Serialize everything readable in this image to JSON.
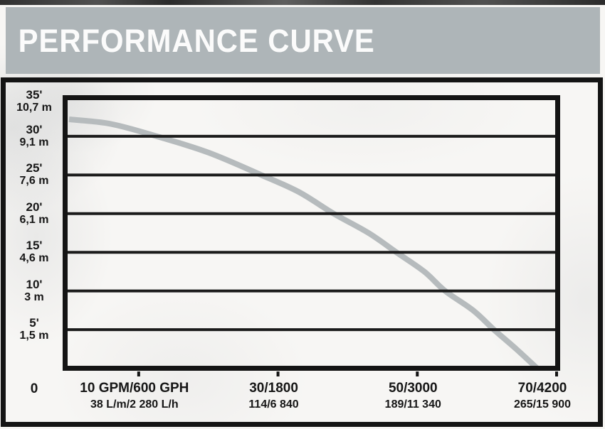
{
  "header": {
    "title": "PERFORMANCE CURVE",
    "background_color": "#aeb5b8",
    "text_color": "#fbfbfb"
  },
  "colors": {
    "curve": "#b6bbbd",
    "grid_line": "#1b1b1b",
    "border_black": "#141414",
    "page_background": "#f7f6f4"
  },
  "chart_data": {
    "type": "line",
    "title": "PERFORMANCE CURVE",
    "legend": "none",
    "grid": "horizontal-only",
    "x_axis": {
      "origin_label": "0",
      "range_gpm": [
        0,
        70
      ],
      "ticks": [
        {
          "gpm": 10,
          "line1": "10 GPM/600 GPH",
          "line2": "38 L/m/2 280 L/h"
        },
        {
          "gpm": 30,
          "line1": "30/1800",
          "line2": "114/6 840"
        },
        {
          "gpm": 50,
          "line1": "50/3000",
          "line2": "189/11 340"
        },
        {
          "gpm": 70,
          "line1": "70/4200",
          "line2": "265/15 900"
        }
      ]
    },
    "y_axis": {
      "range_feet": [
        0,
        35
      ],
      "ticks": [
        {
          "feet": 35,
          "line1": "35'",
          "line2": "10,7 m"
        },
        {
          "feet": 30,
          "line1": "30'",
          "line2": "9,1 m"
        },
        {
          "feet": 25,
          "line1": "25'",
          "line2": "7,6 m"
        },
        {
          "feet": 20,
          "line1": "20'",
          "line2": "6,1 m"
        },
        {
          "feet": 15,
          "line1": "15'",
          "line2": "4,6 m"
        },
        {
          "feet": 10,
          "line1": "10'",
          "line2": "3 m"
        },
        {
          "feet": 5,
          "line1": "5'",
          "line2": "1,5 m"
        }
      ]
    },
    "series": [
      {
        "name": "pump-head-vs-flow",
        "color": "#b6bbbd",
        "points_gpm_feet": [
          [
            0,
            32.2
          ],
          [
            6,
            31.6
          ],
          [
            12.6,
            30
          ],
          [
            20,
            27.9
          ],
          [
            27.6,
            25
          ],
          [
            33,
            22.8
          ],
          [
            38,
            20
          ],
          [
            43,
            17.5
          ],
          [
            47,
            15
          ],
          [
            51,
            12.5
          ],
          [
            54,
            10
          ],
          [
            58,
            7.5
          ],
          [
            61,
            5
          ],
          [
            64.2,
            2.5
          ],
          [
            67.2,
            0
          ]
        ]
      }
    ]
  }
}
